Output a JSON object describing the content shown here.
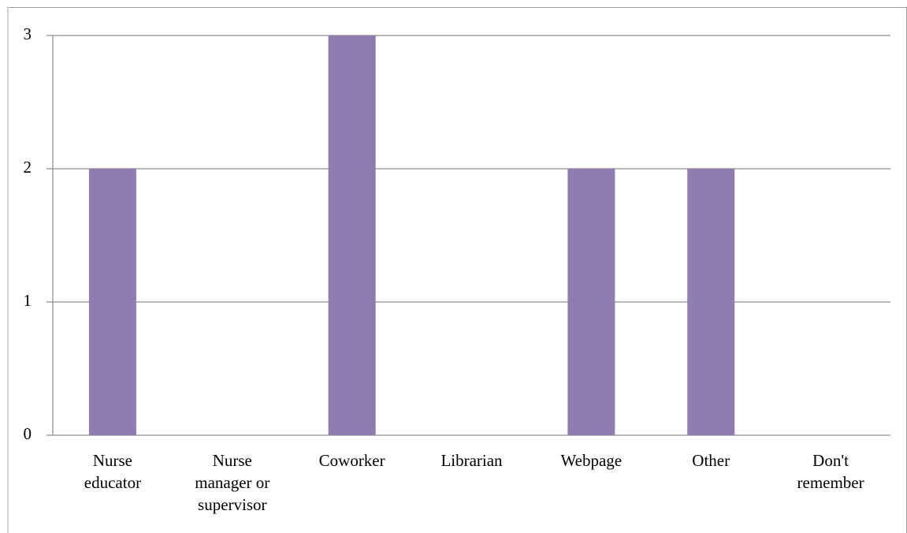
{
  "chart_data": {
    "type": "bar",
    "categories": [
      "Nurse educator",
      "Nurse manager or supervisor",
      "Coworker",
      "Librarian",
      "Webpage",
      "Other",
      "Don't remember"
    ],
    "values": [
      2,
      0,
      3,
      0,
      2,
      2,
      0
    ],
    "color": "#917cb1",
    "ylim": [
      0,
      3
    ],
    "yticks": [
      0,
      1,
      2,
      3
    ],
    "grid": true
  }
}
